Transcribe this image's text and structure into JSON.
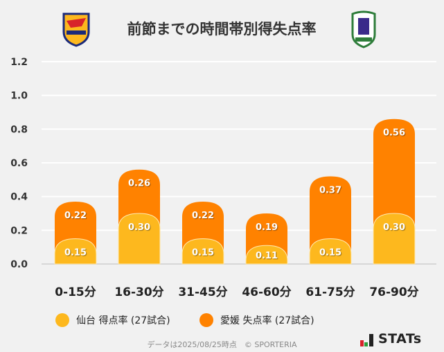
{
  "title": "前節までの時間帯別得失点率",
  "logos": {
    "left": "VEGALTA",
    "right": "EHIME FC"
  },
  "chart_data": {
    "type": "bar",
    "stacked": true,
    "categories": [
      "0-15分",
      "16-30分",
      "31-45分",
      "46-60分",
      "61-75分",
      "76-90分"
    ],
    "series": [
      {
        "name": "仙台 得点率 (27試合)",
        "values": [
          0.15,
          0.3,
          0.15,
          0.11,
          0.15,
          0.3
        ],
        "color": "#fdb81e"
      },
      {
        "name": "愛媛 失点率 (27試合)",
        "values": [
          0.22,
          0.26,
          0.22,
          0.19,
          0.37,
          0.56
        ],
        "color": "#ff8200"
      }
    ],
    "value_labels": [
      [
        "0.15",
        "0.30",
        "0.15",
        "0.11",
        "0.15",
        "0.30"
      ],
      [
        "0.22",
        "0.26",
        "0.22",
        "0.19",
        "0.37",
        "0.56"
      ]
    ],
    "ylim": [
      0,
      1.2
    ],
    "yticks": [
      "0.0",
      "0.2",
      "0.4",
      "0.6",
      "0.8",
      "1.0",
      "1.2"
    ],
    "grid": true,
    "legend": "bottom"
  },
  "footer": "データは2025/08/25時点　© SPORTERIA",
  "brand": "STATs"
}
